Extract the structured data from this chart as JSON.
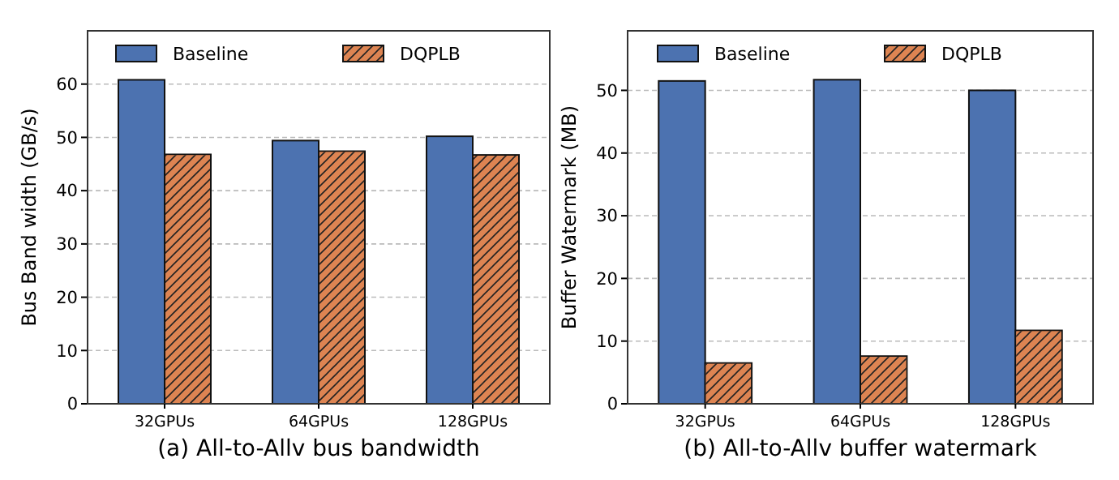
{
  "chart_data": [
    {
      "type": "bar",
      "title": "(a) All-to-Allv bus bandwidth",
      "ylabel": "Bus Band width (GB/s)",
      "categories": [
        "32GPUs",
        "64GPUs",
        "128GPUs"
      ],
      "series": [
        {
          "name": "Baseline",
          "color": "#4c72b0",
          "values": [
            60.8,
            49.4,
            50.2
          ]
        },
        {
          "name": "DQPLB",
          "color": "#dd8452",
          "values": [
            46.8,
            47.4,
            46.7
          ]
        }
      ],
      "ylim": [
        0,
        70
      ],
      "yticks": [
        0,
        10,
        20,
        30,
        40,
        50,
        60
      ],
      "grid": "y",
      "legend": "top"
    },
    {
      "type": "bar",
      "title": "(b) All-to-Allv buffer watermark",
      "ylabel": "Buffer Watermark (MB)",
      "categories": [
        "32GPUs",
        "64GPUs",
        "128GPUs"
      ],
      "series": [
        {
          "name": "Baseline",
          "color": "#4c72b0",
          "values": [
            51.5,
            51.7,
            50.0
          ]
        },
        {
          "name": "DQPLB",
          "color": "#dd8452",
          "values": [
            6.5,
            7.6,
            11.7
          ]
        }
      ],
      "ylim": [
        0,
        59.5
      ],
      "yticks": [
        0,
        10,
        20,
        30,
        40,
        50
      ],
      "grid": "y",
      "legend": "top"
    }
  ]
}
